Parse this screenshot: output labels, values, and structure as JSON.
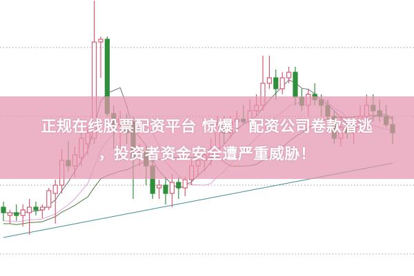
{
  "headline": {
    "line1": "正规在线股票配资平台 惊爆！配资公司卷款潜逃",
    "line2": "，投资者资金安全遭严重威胁！"
  },
  "colors": {
    "up": "#d9576f",
    "down": "#2f8f3a",
    "banner": "#e496b0",
    "ma5": "#6a6a7a",
    "ma10": "#e0a0d8",
    "ma20": "#4f7a3a",
    "ma60": "#3f8f95",
    "grid": "#999999"
  },
  "chart_data": {
    "type": "candlestick",
    "title": "",
    "xlabel": "",
    "ylabel": "",
    "ylim": [
      0,
      100
    ],
    "grid": true,
    "gridlines": [
      83,
      58,
      33,
      8
    ],
    "moving_averages": [
      "ma5",
      "ma10",
      "ma20",
      "ma60"
    ],
    "candles_ocHL": [
      [
        25,
        23,
        27,
        20
      ],
      [
        22,
        23,
        24,
        19
      ],
      [
        23,
        22,
        26,
        20
      ],
      [
        22,
        24,
        26,
        18
      ],
      [
        23,
        25,
        28,
        15
      ],
      [
        25,
        24,
        27,
        22
      ],
      [
        24,
        25,
        26,
        21
      ],
      [
        25,
        31,
        32,
        24
      ],
      [
        30,
        33,
        35,
        19
      ],
      [
        33,
        42,
        46,
        30
      ],
      [
        42,
        40,
        49,
        38
      ],
      [
        40,
        44,
        47,
        36
      ],
      [
        43,
        50,
        55,
        40
      ],
      [
        48,
        52,
        54,
        44
      ],
      [
        50,
        85,
        100,
        48
      ],
      [
        85,
        86,
        87,
        72
      ],
      [
        86,
        59,
        87,
        58
      ],
      [
        59,
        55,
        62,
        46
      ],
      [
        55,
        57,
        60,
        42
      ],
      [
        57,
        52,
        59,
        48
      ],
      [
        56,
        43,
        58,
        28
      ],
      [
        43,
        45,
        48,
        40
      ],
      [
        45,
        40,
        47,
        33
      ],
      [
        40,
        30,
        42,
        28
      ],
      [
        32,
        33,
        35,
        28
      ],
      [
        33,
        30,
        36,
        26
      ],
      [
        30,
        34,
        37,
        25
      ],
      [
        34,
        32,
        36,
        28
      ],
      [
        32,
        35,
        36,
        29
      ],
      [
        35,
        40,
        42,
        33
      ],
      [
        40,
        42,
        45,
        36
      ],
      [
        42,
        44,
        47,
        38
      ],
      [
        44,
        46,
        50,
        40
      ],
      [
        46,
        55,
        58,
        44
      ],
      [
        55,
        52,
        58,
        48
      ],
      [
        52,
        56,
        58,
        50
      ],
      [
        56,
        57,
        60,
        53
      ],
      [
        57,
        56,
        62,
        55
      ],
      [
        56,
        60,
        64,
        54
      ],
      [
        60,
        62,
        66,
        58
      ],
      [
        62,
        70,
        80,
        60
      ],
      [
        70,
        72,
        80,
        68
      ],
      [
        72,
        68,
        75,
        64
      ],
      [
        68,
        72,
        74,
        66
      ],
      [
        72,
        74,
        76,
        70
      ],
      [
        74,
        65,
        76,
        62
      ],
      [
        65,
        62,
        68,
        60
      ],
      [
        62,
        66,
        68,
        58
      ],
      [
        66,
        64,
        70,
        62
      ],
      [
        64,
        62,
        66,
        58
      ],
      [
        62,
        58,
        64,
        52
      ],
      [
        58,
        50,
        60,
        48
      ],
      [
        50,
        54,
        58,
        47
      ],
      [
        54,
        52,
        56,
        50
      ],
      [
        52,
        56,
        58,
        48
      ],
      [
        56,
        58,
        62,
        52
      ],
      [
        58,
        62,
        66,
        54
      ],
      [
        62,
        60,
        66,
        56
      ],
      [
        60,
        58,
        64,
        56
      ],
      [
        58,
        55,
        62,
        54
      ],
      [
        55,
        52,
        58,
        48
      ]
    ]
  }
}
